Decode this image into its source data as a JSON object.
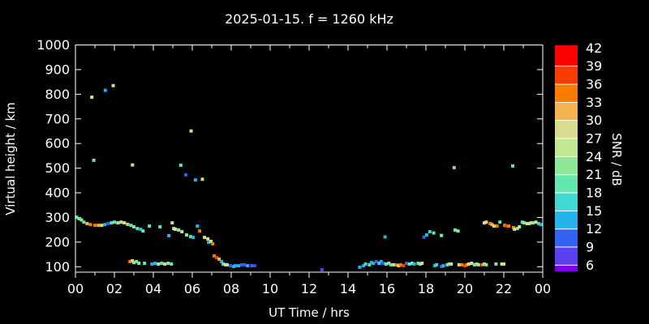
{
  "title": "2025-01-15. f = 1260 kHz",
  "chart_data": {
    "type": "scatter",
    "title": "2025-01-15. f = 1260 kHz",
    "xlabel": "UT Time / hrs",
    "ylabel": "Virtual height / km",
    "colorbar_label": "SNR / dB",
    "background": "#000000",
    "foreground": "#ffffff",
    "grid": false,
    "x_tick_labels": [
      "00",
      "02",
      "04",
      "06",
      "08",
      "10",
      "12",
      "14",
      "16",
      "18",
      "20",
      "22",
      "00"
    ],
    "x_major_hours": [
      0,
      2,
      4,
      6,
      8,
      10,
      12,
      14,
      16,
      18,
      20,
      22,
      24
    ],
    "x_minor_hours": [
      1,
      3,
      5,
      7,
      9,
      11,
      13,
      15,
      17,
      19,
      21,
      23
    ],
    "xlim_hours": [
      0,
      24
    ],
    "y_ticks": [
      100,
      200,
      300,
      400,
      500,
      600,
      700,
      800,
      900,
      1000
    ],
    "ylim": [
      78,
      1000
    ],
    "snr_scale": {
      "min_db": 3,
      "max_db": 42,
      "step_db": 3,
      "tick_labels": [
        42,
        39,
        36,
        33,
        30,
        27,
        24,
        21,
        18,
        15,
        12,
        9,
        6
      ],
      "colors_low_to_high": [
        "#7d00e8",
        "#5a40ee",
        "#3462f0",
        "#24b4ec",
        "#40d8d0",
        "#64e6ae",
        "#8ee696",
        "#c0e890",
        "#d8dc8c",
        "#f5b350",
        "#fa7d00",
        "#fa3c00",
        "#fa0000"
      ]
    },
    "points_t_h_snr": [
      [
        0.06,
        301,
        19.5
      ],
      [
        0.18,
        295,
        22.5
      ],
      [
        0.31,
        290,
        22.5
      ],
      [
        0.43,
        281,
        19.5
      ],
      [
        0.6,
        275,
        31.5
      ],
      [
        0.77,
        271,
        34.5
      ],
      [
        1.0,
        268,
        34.5
      ],
      [
        1.18,
        268,
        31.5
      ],
      [
        1.35,
        268,
        28.5
      ],
      [
        1.51,
        271,
        13.5
      ],
      [
        1.68,
        275,
        10.5
      ],
      [
        1.85,
        278,
        19.5
      ],
      [
        2.0,
        281,
        19.5
      ],
      [
        2.18,
        278,
        25.5
      ],
      [
        2.35,
        281,
        28.5
      ],
      [
        2.51,
        278,
        28.5
      ],
      [
        2.68,
        272,
        22.5
      ],
      [
        2.85,
        268,
        19.5
      ],
      [
        3.0,
        262,
        22.5
      ],
      [
        3.18,
        255,
        19.5
      ],
      [
        3.35,
        252,
        13.5
      ],
      [
        3.47,
        245,
        19.5
      ],
      [
        3.8,
        265,
        19.5
      ],
      [
        4.34,
        262,
        19.5
      ],
      [
        4.8,
        226,
        13.5
      ],
      [
        4.97,
        278,
        25.5
      ],
      [
        5.05,
        255,
        25.5
      ],
      [
        5.13,
        252,
        28.5
      ],
      [
        5.3,
        249,
        22.5
      ],
      [
        5.47,
        242,
        25.5
      ],
      [
        5.71,
        229,
        22.5
      ],
      [
        5.92,
        222,
        19.5
      ],
      [
        6.05,
        219,
        13.5
      ],
      [
        6.26,
        265,
        13.5
      ],
      [
        6.38,
        245,
        34.5
      ],
      [
        6.63,
        219,
        28.5
      ],
      [
        6.8,
        213,
        25.5
      ],
      [
        6.84,
        199,
        13.5
      ],
      [
        6.96,
        203,
        25.5
      ],
      [
        7.05,
        193,
        34.5
      ],
      [
        7.13,
        144,
        34.5
      ],
      [
        7.25,
        137,
        37.5
      ],
      [
        7.38,
        131,
        31.5
      ],
      [
        7.5,
        121,
        13.5
      ],
      [
        7.59,
        111,
        19.5
      ],
      [
        7.71,
        108,
        28.5
      ],
      [
        7.79,
        108,
        25.5
      ],
      [
        7.96,
        104,
        10.5
      ],
      [
        8.13,
        101,
        13.5
      ],
      [
        8.21,
        104,
        13.5
      ],
      [
        8.38,
        104,
        13.5
      ],
      [
        8.54,
        108,
        10.5
      ],
      [
        8.67,
        108,
        10.5
      ],
      [
        8.84,
        104,
        13.5
      ],
      [
        9.05,
        104,
        10.5
      ],
      [
        9.2,
        104,
        7.5
      ],
      [
        2.8,
        121,
        34.5
      ],
      [
        2.93,
        124,
        28.5
      ],
      [
        3.0,
        117,
        22.5
      ],
      [
        3.14,
        121,
        19.5
      ],
      [
        3.26,
        114,
        22.5
      ],
      [
        3.55,
        114,
        19.5
      ],
      [
        3.93,
        111,
        13.5
      ],
      [
        4.09,
        114,
        13.5
      ],
      [
        4.26,
        111,
        28.5
      ],
      [
        4.43,
        114,
        19.5
      ],
      [
        4.59,
        111,
        28.5
      ],
      [
        4.76,
        114,
        22.5
      ],
      [
        4.93,
        111,
        19.5
      ],
      [
        12.66,
        88,
        7.5
      ],
      [
        14.6,
        98,
        13.5
      ],
      [
        14.8,
        104,
        13.5
      ],
      [
        14.9,
        111,
        16.5
      ],
      [
        15.1,
        108,
        19.5
      ],
      [
        15.2,
        117,
        13.5
      ],
      [
        15.3,
        114,
        13.5
      ],
      [
        15.45,
        121,
        10.5
      ],
      [
        15.6,
        114,
        16.5
      ],
      [
        15.7,
        121,
        13.5
      ],
      [
        15.8,
        114,
        10.5
      ],
      [
        15.95,
        111,
        19.5
      ],
      [
        16.1,
        114,
        22.5
      ],
      [
        16.2,
        108,
        19.5
      ],
      [
        16.35,
        108,
        28.5
      ],
      [
        16.5,
        107,
        34.5
      ],
      [
        16.6,
        104,
        28.5
      ],
      [
        16.7,
        108,
        34.5
      ],
      [
        16.85,
        104,
        37.5
      ],
      [
        17.0,
        114,
        10.5
      ],
      [
        17.15,
        111,
        19.5
      ],
      [
        17.3,
        114,
        22.5
      ],
      [
        17.4,
        111,
        13.5
      ],
      [
        17.6,
        114,
        19.5
      ],
      [
        17.7,
        111,
        22.5
      ],
      [
        17.8,
        114,
        25.5
      ],
      [
        18.45,
        104,
        13.5
      ],
      [
        18.55,
        108,
        16.5
      ],
      [
        18.8,
        101,
        10.5
      ],
      [
        18.9,
        104,
        13.5
      ],
      [
        19.1,
        108,
        19.5
      ],
      [
        19.2,
        111,
        22.5
      ],
      [
        19.3,
        111,
        25.5
      ],
      [
        19.7,
        108,
        28.5
      ],
      [
        19.85,
        108,
        34.5
      ],
      [
        20.0,
        104,
        37.5
      ],
      [
        20.1,
        108,
        34.5
      ],
      [
        20.2,
        111,
        28.5
      ],
      [
        20.35,
        114,
        25.5
      ],
      [
        20.5,
        108,
        22.5
      ],
      [
        20.6,
        111,
        19.5
      ],
      [
        20.7,
        108,
        28.5
      ],
      [
        20.9,
        108,
        34.5
      ],
      [
        21.0,
        111,
        22.5
      ],
      [
        21.1,
        108,
        22.5
      ],
      [
        21.6,
        111,
        22.5
      ],
      [
        21.9,
        111,
        25.5
      ],
      [
        22.0,
        111,
        28.5
      ],
      [
        19.5,
        249,
        19.5
      ],
      [
        19.65,
        245,
        22.5
      ],
      [
        21.0,
        278,
        28.5
      ],
      [
        21.1,
        281,
        28.5
      ],
      [
        21.3,
        275,
        34.5
      ],
      [
        21.4,
        271,
        31.5
      ],
      [
        21.5,
        265,
        28.5
      ],
      [
        21.65,
        265,
        34.5
      ],
      [
        21.8,
        281,
        19.5
      ],
      [
        22.05,
        268,
        34.5
      ],
      [
        22.15,
        265,
        37.5
      ],
      [
        22.25,
        265,
        34.5
      ],
      [
        22.5,
        259,
        34.5
      ],
      [
        22.55,
        252,
        28.5
      ],
      [
        22.7,
        255,
        22.5
      ],
      [
        22.8,
        262,
        25.5
      ],
      [
        22.95,
        281,
        19.5
      ],
      [
        23.05,
        278,
        22.5
      ],
      [
        23.2,
        275,
        25.5
      ],
      [
        23.3,
        275,
        28.5
      ],
      [
        23.4,
        278,
        25.5
      ],
      [
        23.5,
        278,
        22.5
      ],
      [
        23.65,
        281,
        25.5
      ],
      [
        23.8,
        275,
        16.5
      ],
      [
        23.9,
        271,
        13.5
      ],
      [
        0.84,
        788,
        25.5
      ],
      [
        1.53,
        816,
        13.5
      ],
      [
        1.94,
        835,
        25.5
      ],
      [
        0.94,
        532,
        19.5
      ],
      [
        2.93,
        513,
        25.5
      ],
      [
        5.41,
        512,
        19.5
      ],
      [
        5.67,
        473,
        10.5
      ],
      [
        5.94,
        651,
        25.5
      ],
      [
        6.16,
        452,
        13.5
      ],
      [
        6.52,
        455,
        25.5
      ],
      [
        15.9,
        221,
        13.5
      ],
      [
        17.9,
        220,
        10.5
      ],
      [
        18.04,
        229,
        13.5
      ],
      [
        18.2,
        242,
        16.5
      ],
      [
        18.4,
        237,
        19.5
      ],
      [
        18.8,
        227,
        22.5
      ],
      [
        19.45,
        502,
        19.5
      ],
      [
        22.46,
        509,
        19.5
      ]
    ]
  }
}
